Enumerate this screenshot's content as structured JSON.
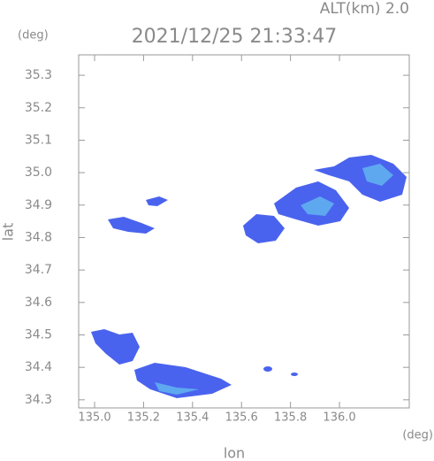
{
  "chart_data": {
    "type": "map",
    "title": "2021/12/25 21:33:47",
    "subtitle": "ALT(km) 2.0",
    "y_unit": "(deg)",
    "x_unit": "(deg)",
    "x_label": "lon",
    "y_label": "lat",
    "xlim": [
      134.935,
      136.285
    ],
    "ylim": [
      34.275,
      35.363
    ],
    "xticks": [
      {
        "value": 135.0,
        "label": "135.0"
      },
      135.2,
      135.4,
      135.6,
      135.8,
      {
        "value": 136.0,
        "label": "136.0"
      }
    ],
    "yticks": [
      34.3,
      34.4,
      34.5,
      34.6,
      34.7,
      34.8,
      34.9,
      {
        "value": 35.0,
        "label": "35.0"
      },
      35.1,
      35.2,
      35.3
    ],
    "axis_color": "#999999"
  }
}
